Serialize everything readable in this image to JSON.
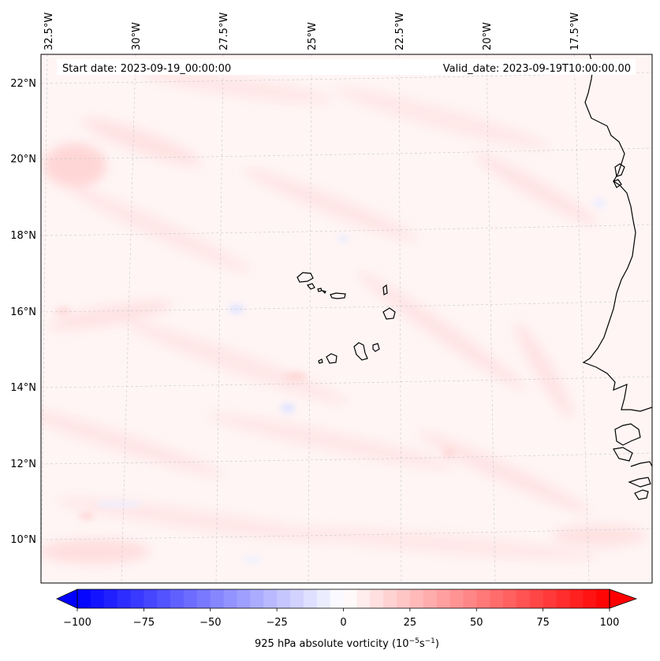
{
  "map": {
    "start_date_label": "Start date: 2023-09-19_00:00:00",
    "valid_date_label": "Valid_date: 2023-09-19T10:00:00.00",
    "longitude_labels": [
      "32.5°W",
      "30°W",
      "27.5°W",
      "25°W",
      "22.5°W",
      "20°W",
      "17.5°W"
    ],
    "latitude_labels": [
      "22°N",
      "20°N",
      "18°N",
      "16°N",
      "14°N",
      "12°N",
      "10°N"
    ]
  },
  "colorbar": {
    "ticks": [
      "−100",
      "−75",
      "−50",
      "−25",
      "0",
      "25",
      "50",
      "75",
      "100"
    ],
    "label_prefix": "925 hPa absolute vorticity (10",
    "label_exp1": "−5",
    "label_mid": "s",
    "label_exp2": "−1",
    "label_suffix": ")",
    "range": [
      -100,
      100
    ],
    "colors": {
      "negative": "#0000ff",
      "neutral": "#ffffff",
      "positive": "#ff0000"
    }
  },
  "field": {
    "name": "925 hPa absolute vorticity",
    "background": "#fff5f5",
    "tints": [
      "#ffe6e6",
      "#ffdede",
      "#fff0f0",
      "#eef0ff",
      "#e4e8ff"
    ]
  }
}
